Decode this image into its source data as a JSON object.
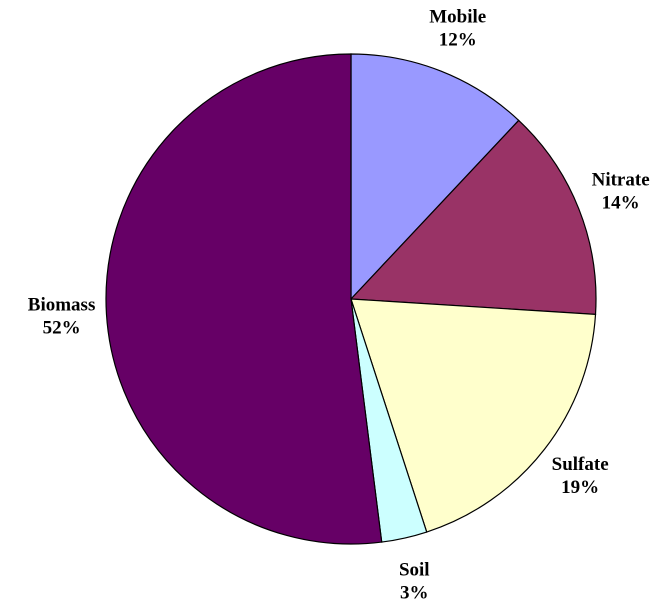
{
  "chart_data": {
    "type": "pie",
    "categories": [
      "Mobile",
      "Nitrate",
      "Sulfate",
      "Soil",
      "Biomass"
    ],
    "values": [
      12,
      14,
      19,
      3,
      52
    ],
    "value_labels": [
      "12%",
      "14%",
      "19%",
      "3%",
      "52%"
    ],
    "colors": [
      "#9999ff",
      "#993366",
      "#ffffcc",
      "#ccffff",
      "#660066"
    ]
  }
}
